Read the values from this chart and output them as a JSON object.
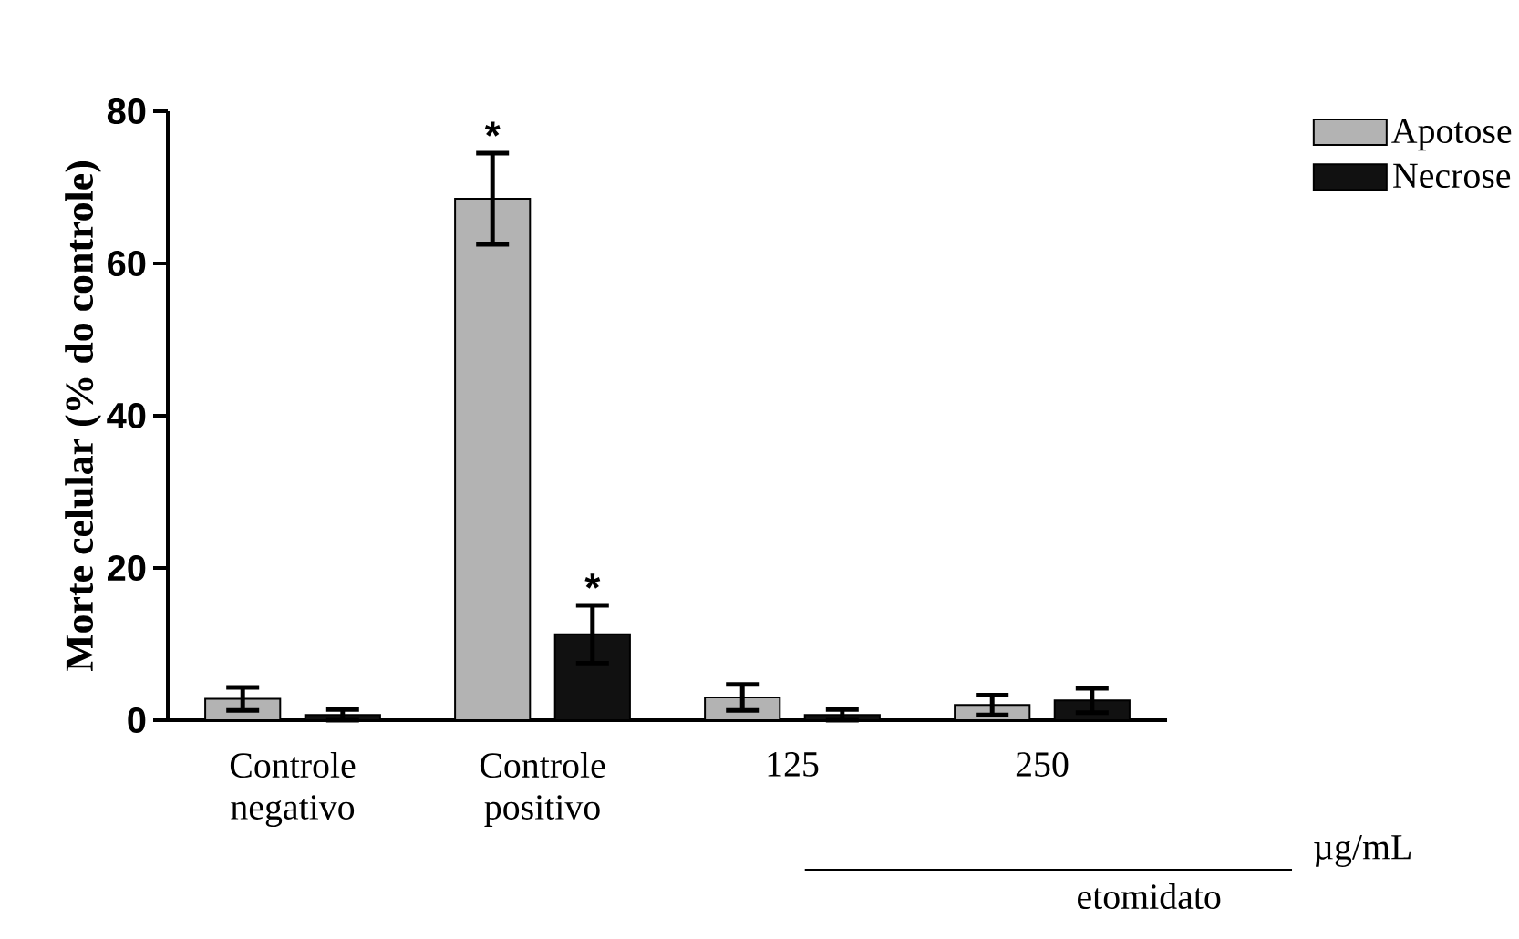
{
  "chart_data": {
    "type": "bar",
    "ylabel": "Morte celular (% do controle)",
    "categories": [
      "Controle negativo",
      "Controle positivo",
      "125",
      "250"
    ],
    "series": [
      {
        "name": "Apotose",
        "color": "#b3b3b3",
        "values": [
          2.8,
          68.5,
          3,
          2
        ],
        "errors": [
          1.5,
          6,
          1.7,
          1.3
        ]
      },
      {
        "name": "Necrose",
        "color": "#111111",
        "values": [
          0.7,
          11.3,
          0.7,
          2.6
        ],
        "errors": [
          0.7,
          3.8,
          0.7,
          1.6
        ]
      }
    ],
    "ylim": [
      0,
      80
    ],
    "yticks": [
      0,
      20,
      40,
      60,
      80
    ],
    "legend": "top right",
    "annotations": [
      "*",
      "*",
      "µg/mL",
      "etomidato"
    ]
  }
}
